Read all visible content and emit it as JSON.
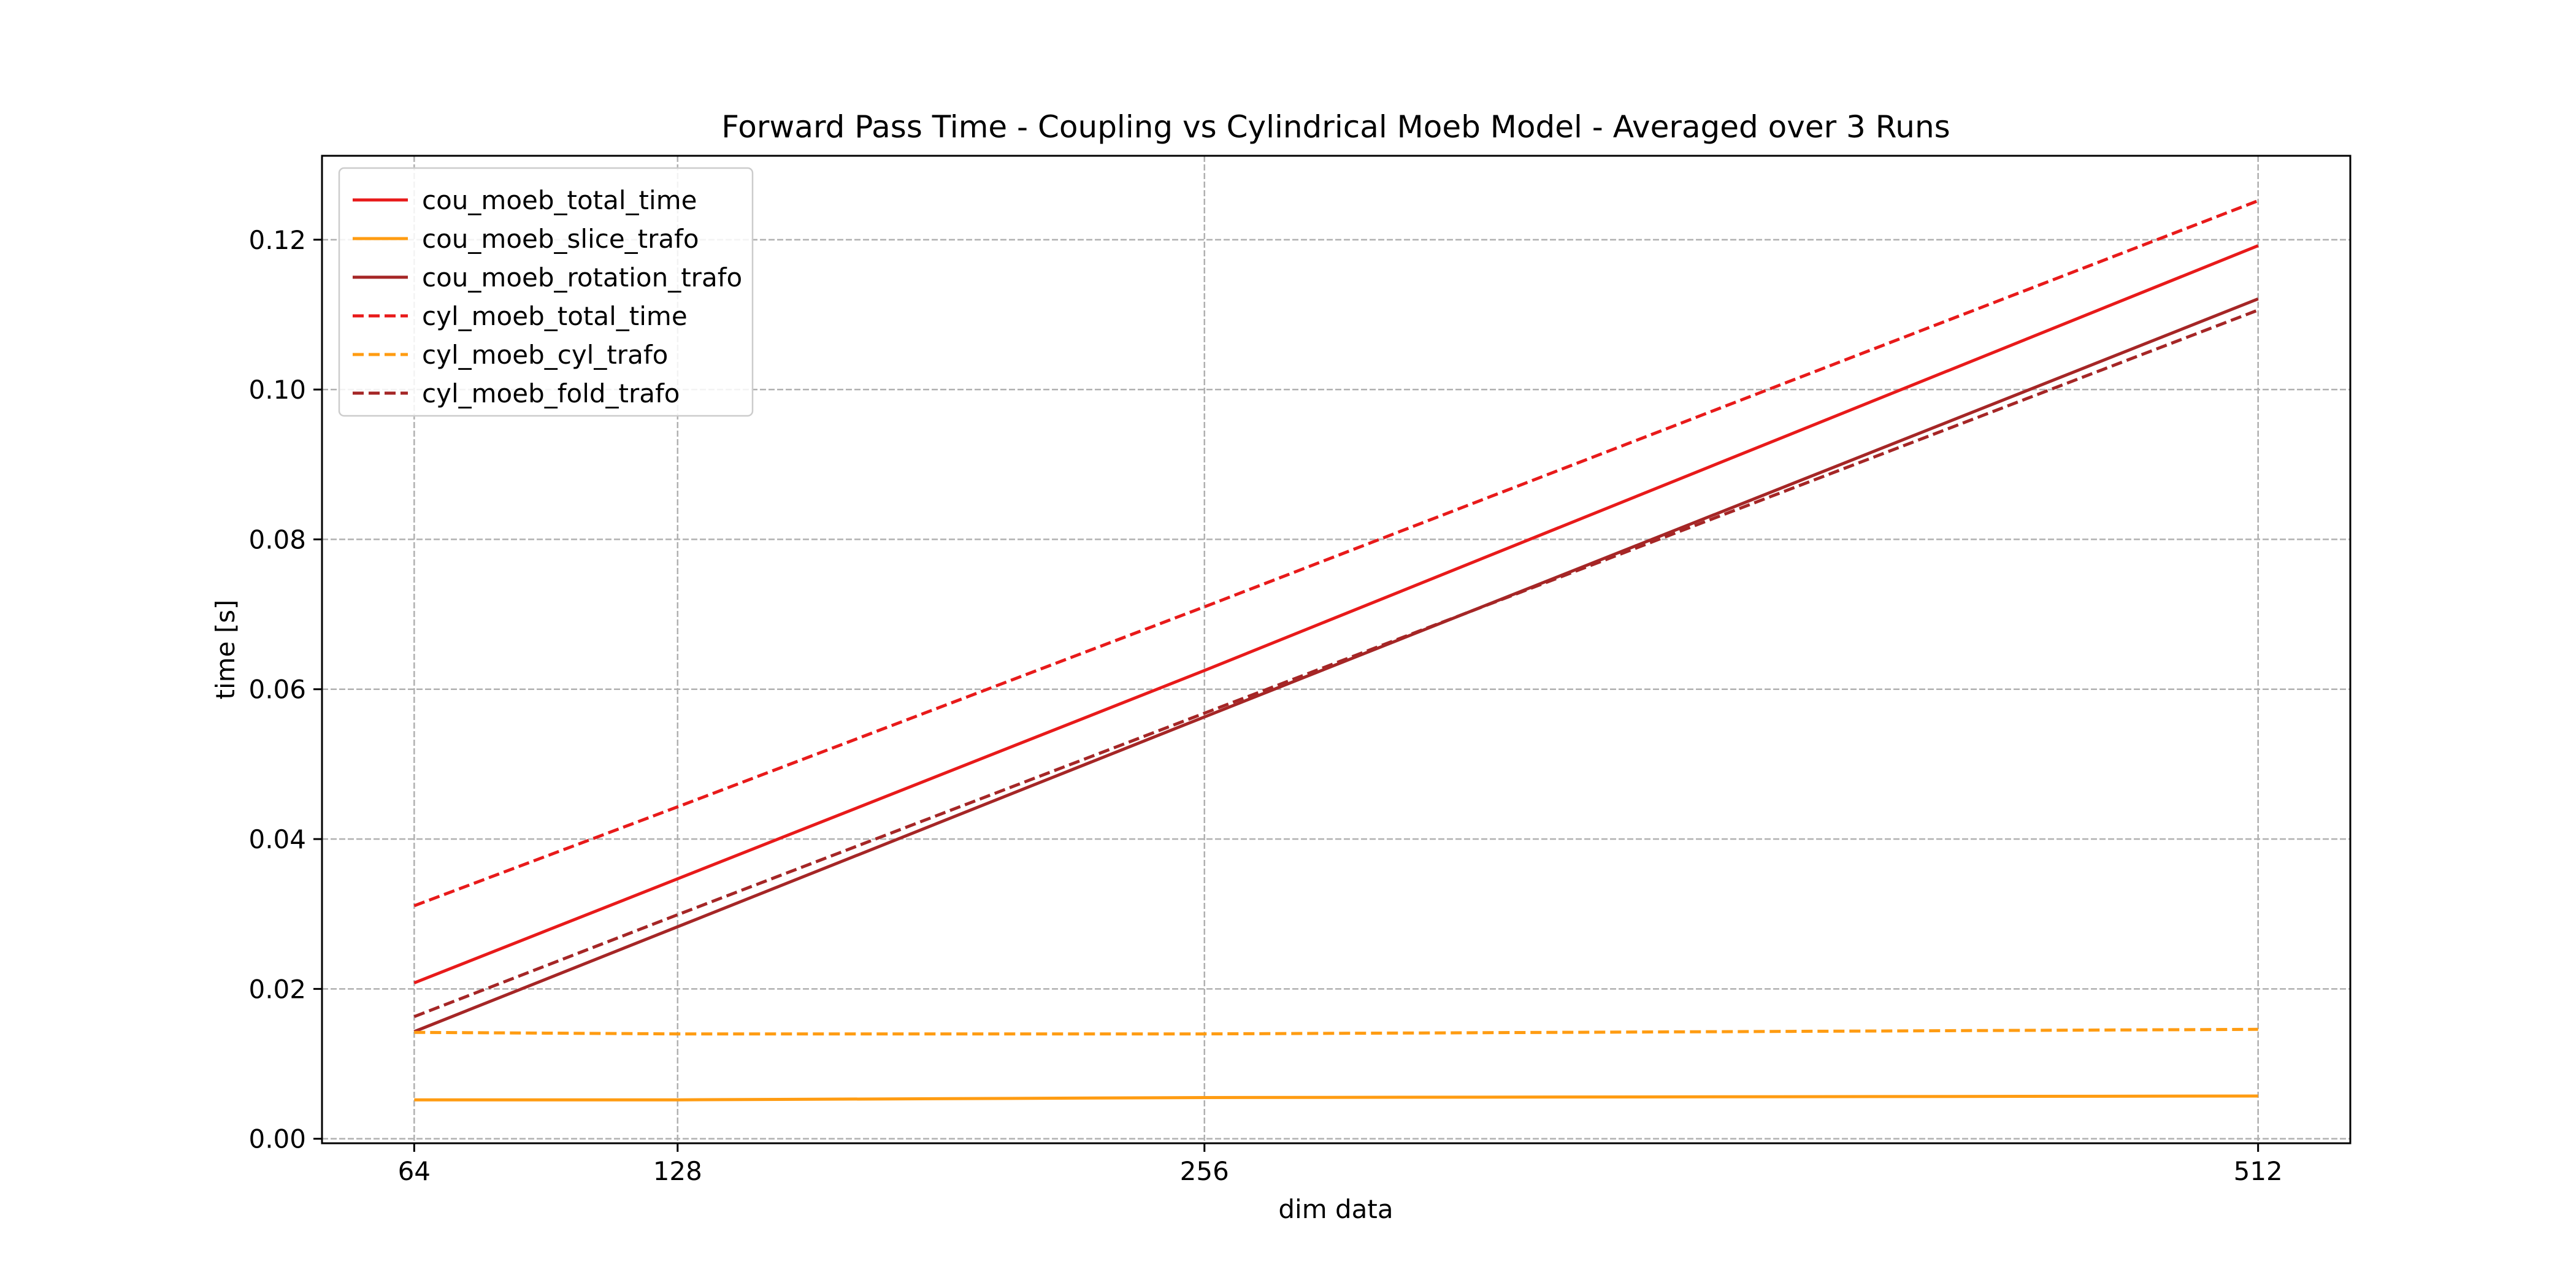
{
  "chart_data": {
    "type": "line",
    "title": "Forward Pass Time - Coupling vs Cylindrical Moeb Model - Averaged over 3 Runs",
    "xlabel": "dim data",
    "ylabel": "time [s]",
    "x": [
      64,
      128,
      256,
      512
    ],
    "xticks": [
      "64",
      "128",
      "256",
      "512"
    ],
    "yticks": [
      "0.00",
      "0.02",
      "0.04",
      "0.06",
      "0.08",
      "0.10",
      "0.12"
    ],
    "xlim": [
      41.6,
      534.4
    ],
    "ylim": [
      -0.0006,
      0.1312
    ],
    "grid": true,
    "legend_position": "top-left",
    "series": [
      {
        "name": "cou_moeb_total_time",
        "color": "#e81a1a",
        "dash": "solid",
        "values": [
          0.0208,
          0.0347,
          0.0625,
          0.1192
        ]
      },
      {
        "name": "cou_moeb_slice_trafo",
        "color": "#ff9c12",
        "dash": "solid",
        "values": [
          0.0052,
          0.0052,
          0.0055,
          0.0057
        ]
      },
      {
        "name": "cou_moeb_rotation_trafo",
        "color": "#a52626",
        "dash": "solid",
        "values": [
          0.0143,
          0.0283,
          0.0563,
          0.1121
        ]
      },
      {
        "name": "cyl_moeb_total_time",
        "color": "#e81a1a",
        "dash": "dashed",
        "values": [
          0.0311,
          0.0443,
          0.071,
          0.1252
        ]
      },
      {
        "name": "cyl_moeb_cyl_trafo",
        "color": "#ff9c12",
        "dash": "dashed",
        "values": [
          0.0142,
          0.014,
          0.014,
          0.0146
        ]
      },
      {
        "name": "cyl_moeb_fold_trafo",
        "color": "#a52626",
        "dash": "dashed",
        "values": [
          0.0163,
          0.0299,
          0.0568,
          0.1106
        ]
      }
    ]
  }
}
